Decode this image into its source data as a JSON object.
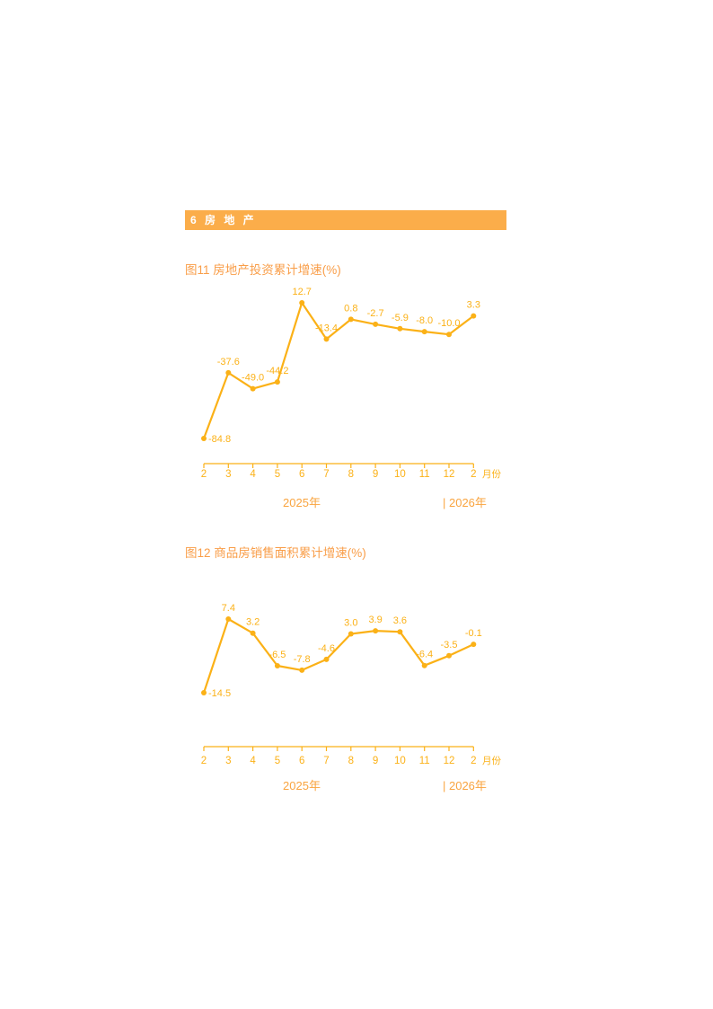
{
  "section_header": {
    "label": "6  房 地 产"
  },
  "colors": {
    "header_bar_bg": "#FBAD4A",
    "header_bar_text": "#FFFFFF",
    "chart_title": "#F99E49",
    "line": "#FBB117",
    "axis": "#FBB117",
    "data_label": "#FBB117",
    "month_label": "#FBB117",
    "year_label": "#F9A43F"
  },
  "chart_data": [
    {
      "type": "line",
      "title": "图11  房地产投资累计增速(%)",
      "categories": [
        "2",
        "3",
        "4",
        "5",
        "6",
        "7",
        "8",
        "9",
        "10",
        "11",
        "12",
        "2"
      ],
      "values": [
        -84.8,
        -37.6,
        -49.0,
        -44.2,
        12.7,
        -13.4,
        0.8,
        -2.7,
        -5.9,
        -8.0,
        -10.0,
        3.3
      ],
      "labels": [
        "-84.8",
        "-37.6",
        "-49.0",
        "-44.2",
        "12.7",
        "-13.4",
        "0.8",
        "-2.7",
        "-5.9",
        "-8.0",
        "-10.0",
        "3.3"
      ],
      "xlabel": "月份",
      "year_left": "2025年",
      "year_right": "| 2026年",
      "legend": "none",
      "grid": false,
      "ylim": [
        -90,
        20
      ]
    },
    {
      "type": "line",
      "title": "图12  商品房销售面积累计增速(%)",
      "categories": [
        "2",
        "3",
        "4",
        "5",
        "6",
        "7",
        "8",
        "9",
        "10",
        "11",
        "12",
        "2"
      ],
      "values": [
        -14.5,
        7.4,
        3.2,
        -6.5,
        -7.8,
        -4.6,
        3.0,
        3.9,
        3.6,
        -6.4,
        -3.5,
        -0.1
      ],
      "labels": [
        "-14.5",
        "7.4",
        "3.2",
        "-6.5",
        "-7.8",
        "-4.6",
        "3.0",
        "3.9",
        "3.6",
        "-6.4",
        "-3.5",
        "-0.1"
      ],
      "xlabel": "月份",
      "year_left": "2025年",
      "year_right": "| 2026年",
      "legend": "none",
      "grid": false,
      "ylim": [
        -16,
        9
      ]
    }
  ]
}
